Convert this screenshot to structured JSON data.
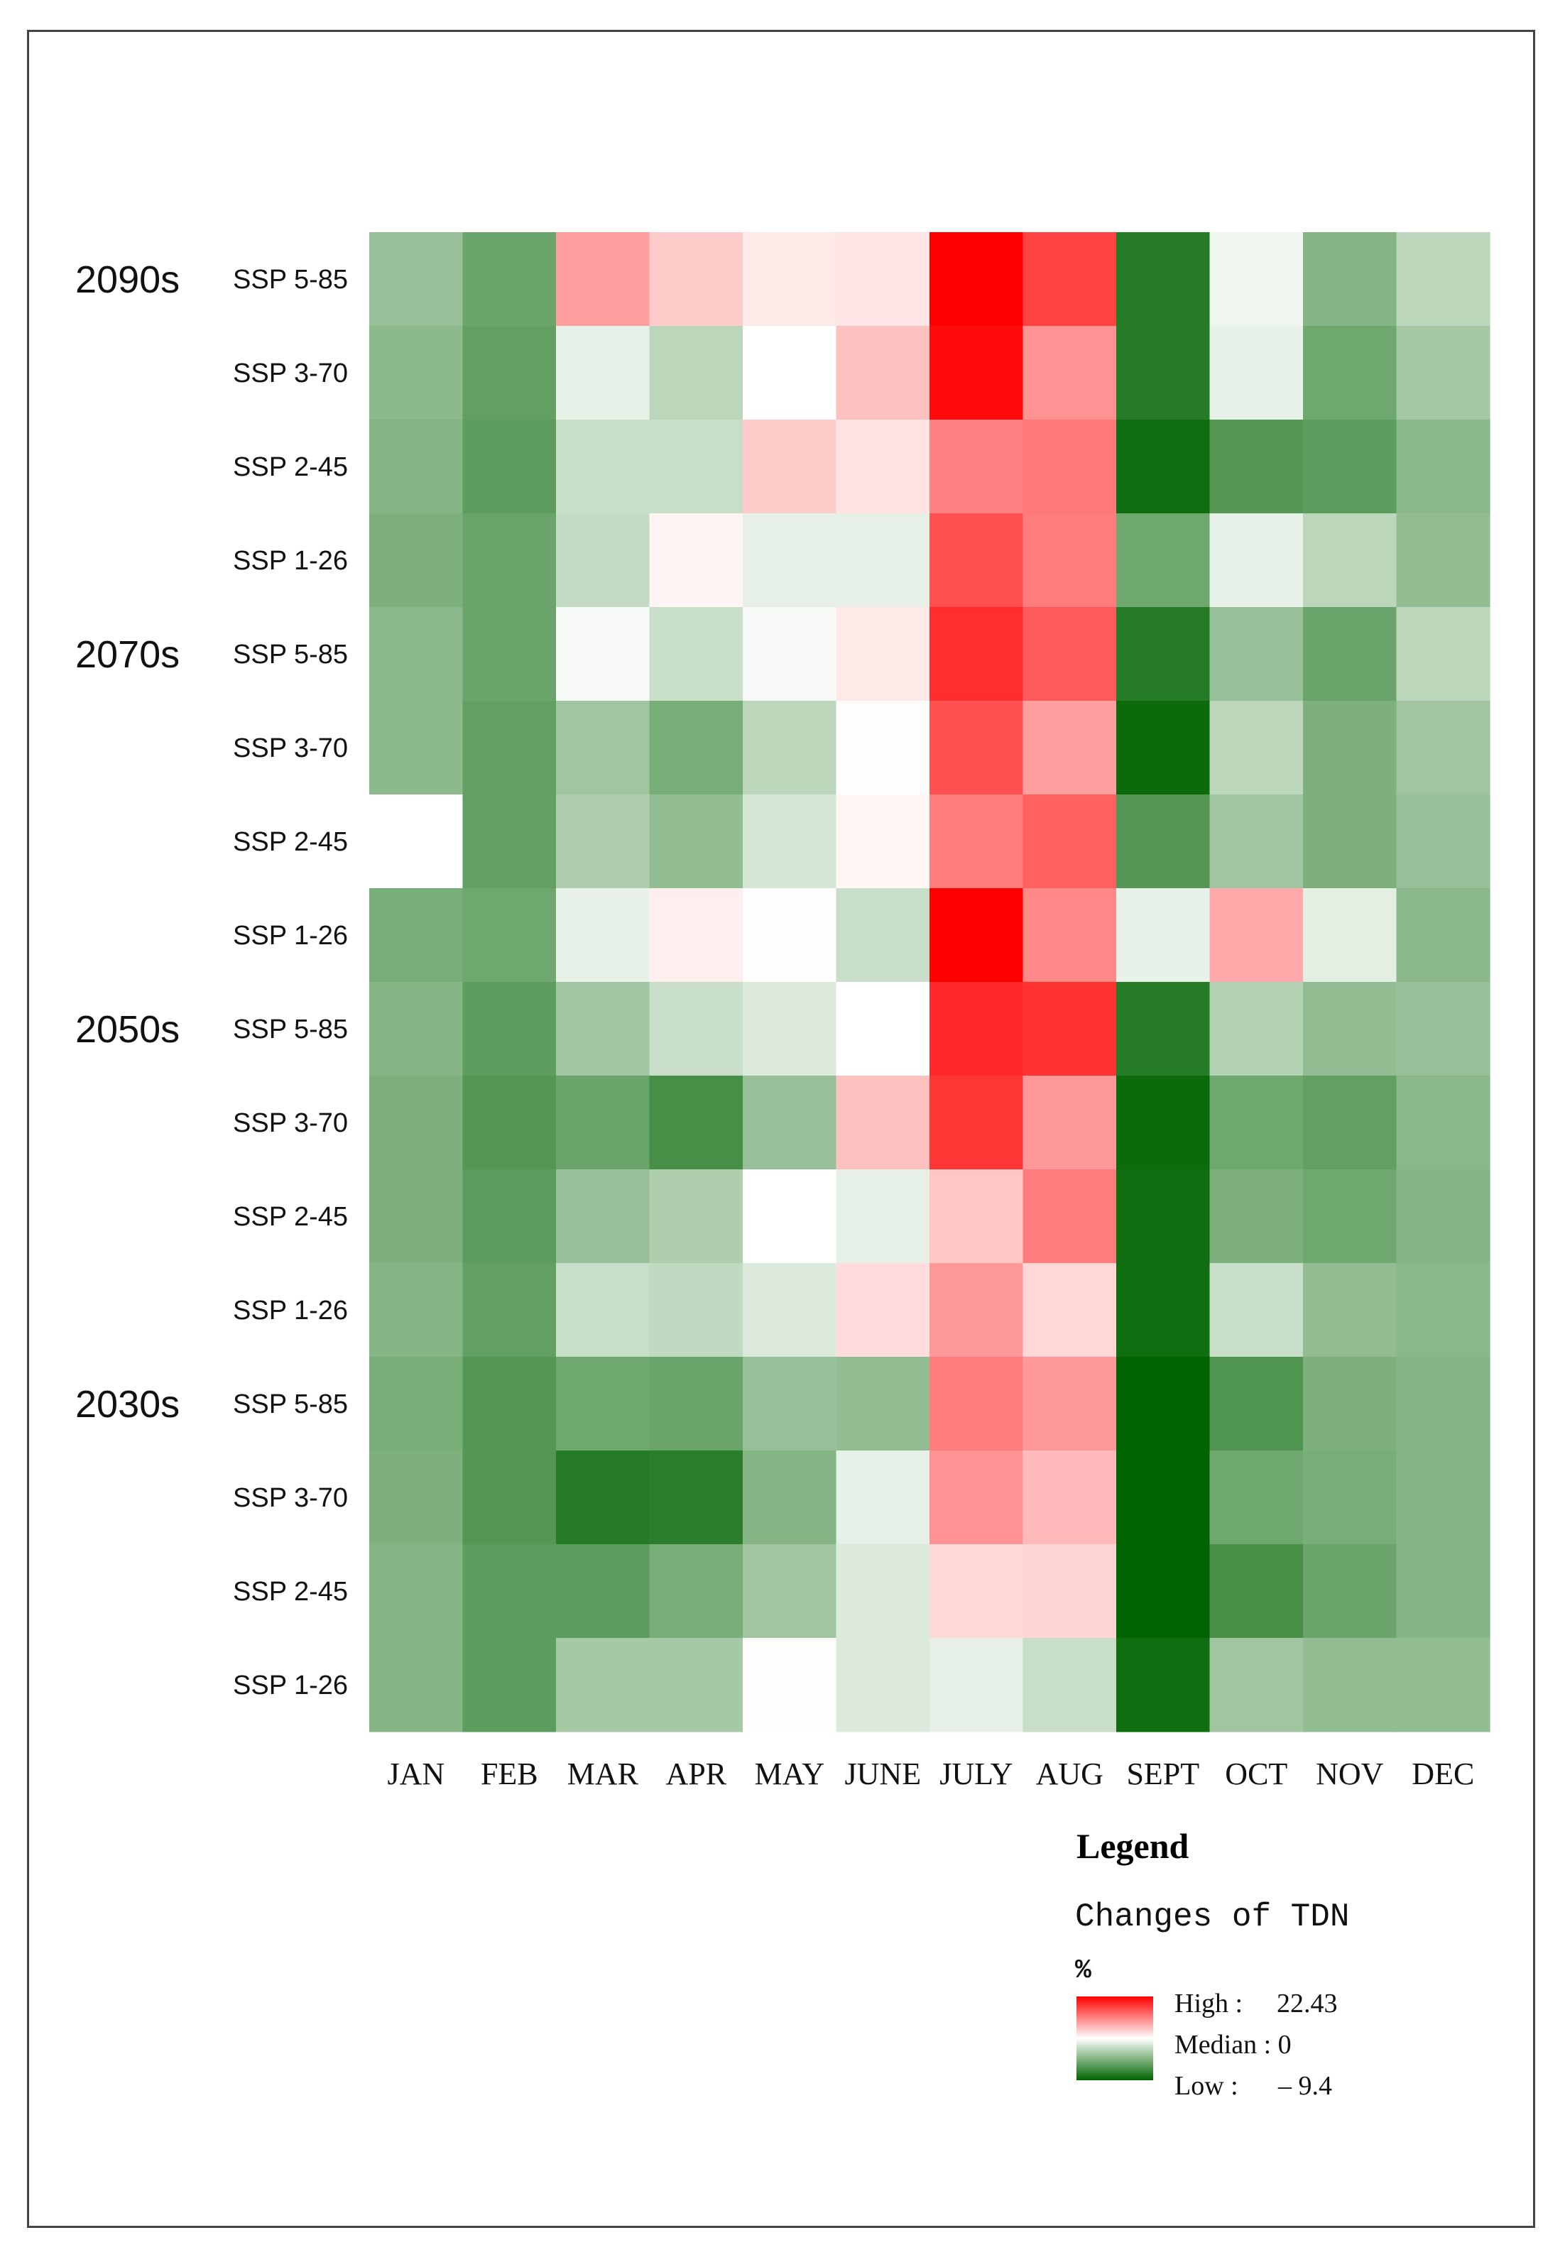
{
  "chart_data": {
    "type": "heatmap",
    "columns": [
      "JAN",
      "FEB",
      "MAR",
      "APR",
      "MAY",
      "JUNE",
      "JULY",
      "AUG",
      "SEPT",
      "OCT",
      "NOV",
      "DEC"
    ],
    "rows": [
      {
        "decade": "2090s",
        "label": "SSP 5-85",
        "values": [
          -3.8,
          -5.5,
          8.5,
          4.5,
          2.0,
          2.2,
          22.43,
          16.5,
          -8.0,
          -0.6,
          -4.5,
          -2.5
        ]
      },
      {
        "decade": "",
        "label": "SSP 3-70",
        "values": [
          -4.2,
          -5.8,
          -0.8,
          -2.5,
          0.0,
          5.5,
          21.5,
          9.5,
          -8.0,
          -0.8,
          -5.3,
          -3.3
        ]
      },
      {
        "decade": "",
        "label": "SSP 2-45",
        "values": [
          -4.5,
          -6.0,
          -2.0,
          -2.0,
          4.5,
          2.5,
          11.0,
          12.0,
          -8.8,
          -6.3,
          -6.0,
          -4.3
        ]
      },
      {
        "decade": "",
        "label": "SSP 1-26",
        "values": [
          -4.8,
          -5.5,
          -2.2,
          1.0,
          -0.9,
          -0.9,
          15.5,
          11.5,
          -5.3,
          -0.8,
          -2.5,
          -4.0
        ]
      },
      {
        "decade": "2070s",
        "label": "SSP 5-85",
        "values": [
          -4.2,
          -5.5,
          -0.3,
          -2.0,
          -0.3,
          2.0,
          18.5,
          14.5,
          -8.0,
          -3.8,
          -5.5,
          -2.5
        ]
      },
      {
        "decade": "",
        "label": "SSP 3-70",
        "values": [
          -4.2,
          -5.8,
          -3.5,
          -5.0,
          -2.5,
          0.3,
          15.5,
          8.5,
          -9.0,
          -2.5,
          -4.8,
          -3.5
        ]
      },
      {
        "decade": "",
        "label": "SSP 2-45",
        "values": [
          null,
          -5.8,
          -3.0,
          -4.0,
          -1.5,
          0.8,
          11.5,
          14.0,
          -6.3,
          -3.5,
          -4.8,
          -3.8
        ]
      },
      {
        "decade": "",
        "label": "SSP 1-26",
        "values": [
          -5.0,
          -5.3,
          -0.8,
          1.5,
          0.2,
          -2.0,
          22.43,
          10.5,
          -0.8,
          7.5,
          -1.0,
          -4.3
        ]
      },
      {
        "decade": "2050s",
        "label": "SSP 5-85",
        "values": [
          -4.5,
          -6.0,
          -3.5,
          -2.0,
          -1.3,
          0.0,
          18.8,
          18.0,
          -8.0,
          -2.8,
          -4.0,
          -3.8
        ]
      },
      {
        "decade": "",
        "label": "SSP 3-70",
        "values": [
          -4.8,
          -6.3,
          -5.5,
          -6.8,
          -3.8,
          5.5,
          17.8,
          9.0,
          -9.0,
          -5.3,
          -5.8,
          -4.3
        ]
      },
      {
        "decade": "",
        "label": "SSP 2-45",
        "values": [
          -4.8,
          -6.0,
          -3.8,
          -3.0,
          0.0,
          -0.9,
          5.0,
          11.5,
          -8.8,
          -4.8,
          -5.3,
          -4.5
        ]
      },
      {
        "decade": "",
        "label": "SSP 1-26",
        "values": [
          -4.5,
          -5.8,
          -2.0,
          -2.3,
          -1.3,
          3.0,
          9.0,
          3.5,
          -8.8,
          -2.0,
          -4.0,
          -4.3
        ]
      },
      {
        "decade": "2030s",
        "label": "SSP 5-85",
        "values": [
          -5.0,
          -6.3,
          -5.3,
          -5.5,
          -3.8,
          -4.0,
          11.5,
          9.0,
          -9.4,
          -6.5,
          -4.8,
          -4.5
        ]
      },
      {
        "decade": "",
        "label": "SSP 3-70",
        "values": [
          -4.8,
          -6.3,
          -8.0,
          -7.8,
          -4.5,
          -0.9,
          9.5,
          6.0,
          -9.4,
          -5.3,
          -5.0,
          -4.5
        ]
      },
      {
        "decade": "",
        "label": "SSP 2-45",
        "values": [
          -4.5,
          -6.0,
          -6.0,
          -5.0,
          -3.5,
          -1.3,
          3.5,
          3.8,
          -9.4,
          -6.8,
          -5.5,
          -4.5
        ]
      },
      {
        "decade": "",
        "label": "SSP 1-26",
        "values": [
          -4.5,
          -6.0,
          -3.3,
          -3.3,
          0.3,
          -1.3,
          -0.9,
          -2.0,
          -8.8,
          -3.5,
          -4.0,
          -4.0
        ]
      }
    ],
    "scale": {
      "low": -9.4,
      "median": 0,
      "high": 22.43
    },
    "colors": {
      "high": "#ff0000",
      "median": "#ffffff",
      "low": "#006400"
    }
  },
  "legend": {
    "title": "Legend",
    "subtitle": "Changes of TDN",
    "unit": "%",
    "high_text": "High :",
    "high_value": "22.43",
    "median_text": "Median : 0",
    "low_text": "Low :",
    "low_value": "– 9.4"
  }
}
